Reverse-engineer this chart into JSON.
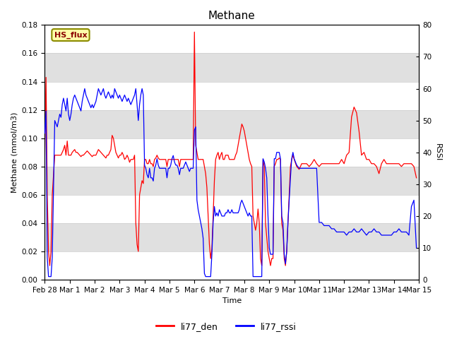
{
  "title": "Methane",
  "ylabel_left": "Methane (mmol/m3)",
  "ylabel_right": "RSSI",
  "xlabel": "Time",
  "ylim_left": [
    0,
    0.18
  ],
  "ylim_right": [
    0,
    80
  ],
  "legend_labels": [
    "li77_den",
    "li77_rssi"
  ],
  "hs_flux_label": "HS_flux",
  "background_color": "#ffffff",
  "band_colors": [
    "#ffffff",
    "#e0e0e0"
  ],
  "band_edges_left": [
    0.0,
    0.02,
    0.04,
    0.06,
    0.08,
    0.1,
    0.12,
    0.14,
    0.16,
    0.18
  ],
  "title_fontsize": 11,
  "axis_label_fontsize": 8,
  "tick_label_fontsize": 7.5,
  "line_width": 0.9,
  "xtick_labels": [
    "Feb 28",
    "Mar 1",
    "Mar 2",
    "Mar 3",
    "Mar 4",
    "Mar 5",
    "Mar 6",
    "Mar 7",
    "Mar 8",
    "Mar 9",
    "Mar 10",
    "Mar 11",
    "Mar 12",
    "Mar 13",
    "Mar 14",
    "Mar 15"
  ],
  "xtick_positions": [
    0,
    1,
    2,
    3,
    4,
    5,
    6,
    7,
    8,
    9,
    10,
    11,
    12,
    13,
    14,
    15
  ],
  "red_data_x": [
    0.0,
    0.05,
    0.1,
    0.15,
    0.2,
    0.25,
    0.3,
    0.4,
    0.5,
    0.55,
    0.6,
    0.65,
    0.7,
    0.75,
    0.8,
    0.85,
    0.9,
    0.95,
    1.0,
    1.05,
    1.1,
    1.15,
    1.2,
    1.25,
    1.3,
    1.35,
    1.4,
    1.45,
    1.5,
    1.55,
    1.6,
    1.65,
    1.7,
    1.75,
    1.8,
    1.85,
    1.9,
    1.95,
    2.0,
    2.05,
    2.1,
    2.15,
    2.2,
    2.25,
    2.3,
    2.35,
    2.4,
    2.45,
    2.5,
    2.55,
    2.6,
    2.65,
    2.7,
    2.75,
    2.8,
    2.85,
    2.9,
    2.95,
    3.0,
    3.05,
    3.1,
    3.15,
    3.2,
    3.25,
    3.3,
    3.35,
    3.4,
    3.45,
    3.5,
    3.55,
    3.6,
    3.65,
    3.7,
    3.75,
    3.8,
    3.85,
    3.9,
    3.95,
    4.0,
    4.05,
    4.1,
    4.15,
    4.2,
    4.25,
    4.3,
    4.35,
    4.4,
    4.45,
    4.5,
    4.55,
    4.6,
    4.65,
    4.7,
    4.75,
    4.8,
    4.85,
    4.9,
    4.95,
    5.0,
    5.05,
    5.1,
    5.15,
    5.2,
    5.25,
    5.3,
    5.35,
    5.4,
    5.45,
    5.5,
    5.55,
    5.6,
    5.65,
    5.7,
    5.75,
    5.8,
    5.85,
    5.9,
    5.95,
    6.0,
    6.05,
    6.1,
    6.15,
    6.2,
    6.25,
    6.3,
    6.35,
    6.4,
    6.45,
    6.5,
    6.55,
    6.6,
    6.65,
    6.7,
    6.75,
    6.8,
    6.85,
    6.9,
    6.95,
    7.0,
    7.05,
    7.1,
    7.15,
    7.2,
    7.25,
    7.3,
    7.35,
    7.4,
    7.45,
    7.5,
    7.55,
    7.6,
    7.65,
    7.7,
    7.75,
    7.8,
    7.85,
    7.9,
    7.95,
    8.0,
    8.05,
    8.1,
    8.15,
    8.2,
    8.25,
    8.3,
    8.35,
    8.4,
    8.45,
    8.5,
    8.55,
    8.6,
    8.65,
    8.7,
    8.75,
    8.8,
    8.85,
    8.9,
    8.95,
    9.0,
    9.05,
    9.1,
    9.15,
    9.2,
    9.25,
    9.3,
    9.35,
    9.4,
    9.45,
    9.5,
    9.55,
    9.6,
    9.65,
    9.7,
    9.75,
    9.8,
    9.85,
    9.9,
    9.95,
    10.0,
    10.1,
    10.2,
    10.3,
    10.4,
    10.5,
    10.6,
    10.7,
    10.8,
    10.9,
    11.0,
    11.1,
    11.2,
    11.3,
    11.4,
    11.5,
    11.6,
    11.7,
    11.8,
    11.9,
    12.0,
    12.1,
    12.2,
    12.3,
    12.4,
    12.5,
    12.6,
    12.7,
    12.8,
    12.9,
    13.0,
    13.1,
    13.2,
    13.3,
    13.4,
    13.5,
    13.6,
    13.7,
    13.8,
    13.9,
    14.0,
    14.1,
    14.2,
    14.3,
    14.4,
    14.5,
    14.6,
    14.7,
    14.8,
    14.9
  ],
  "red_data_y": [
    0.088,
    0.143,
    0.06,
    0.02,
    0.01,
    0.02,
    0.06,
    0.088,
    0.088,
    0.088,
    0.088,
    0.088,
    0.09,
    0.092,
    0.095,
    0.088,
    0.098,
    0.088,
    0.088,
    0.088,
    0.09,
    0.091,
    0.092,
    0.09,
    0.09,
    0.089,
    0.088,
    0.087,
    0.088,
    0.088,
    0.089,
    0.09,
    0.091,
    0.09,
    0.089,
    0.088,
    0.087,
    0.088,
    0.088,
    0.088,
    0.09,
    0.092,
    0.091,
    0.09,
    0.089,
    0.088,
    0.087,
    0.086,
    0.088,
    0.088,
    0.09,
    0.092,
    0.102,
    0.1,
    0.095,
    0.09,
    0.088,
    0.086,
    0.088,
    0.088,
    0.09,
    0.088,
    0.085,
    0.086,
    0.088,
    0.086,
    0.083,
    0.085,
    0.085,
    0.085,
    0.088,
    0.04,
    0.025,
    0.02,
    0.06,
    0.065,
    0.07,
    0.068,
    0.085,
    0.085,
    0.082,
    0.082,
    0.085,
    0.082,
    0.082,
    0.08,
    0.085,
    0.086,
    0.088,
    0.086,
    0.085,
    0.085,
    0.085,
    0.085,
    0.085,
    0.085,
    0.08,
    0.085,
    0.085,
    0.085,
    0.085,
    0.085,
    0.085,
    0.085,
    0.085,
    0.085,
    0.08,
    0.085,
    0.085,
    0.085,
    0.085,
    0.085,
    0.085,
    0.085,
    0.085,
    0.085,
    0.085,
    0.085,
    0.175,
    0.095,
    0.09,
    0.085,
    0.085,
    0.085,
    0.085,
    0.085,
    0.08,
    0.075,
    0.065,
    0.045,
    0.025,
    0.015,
    0.022,
    0.045,
    0.07,
    0.085,
    0.088,
    0.09,
    0.085,
    0.088,
    0.09,
    0.085,
    0.085,
    0.088,
    0.088,
    0.088,
    0.085,
    0.085,
    0.085,
    0.085,
    0.085,
    0.088,
    0.09,
    0.095,
    0.1,
    0.105,
    0.11,
    0.108,
    0.105,
    0.1,
    0.095,
    0.09,
    0.085,
    0.082,
    0.08,
    0.045,
    0.04,
    0.035,
    0.04,
    0.05,
    0.04,
    0.015,
    0.01,
    0.085,
    0.08,
    0.04,
    0.03,
    0.02,
    0.015,
    0.01,
    0.015,
    0.015,
    0.08,
    0.082,
    0.085,
    0.085,
    0.086,
    0.085,
    0.04,
    0.035,
    0.015,
    0.01,
    0.02,
    0.04,
    0.06,
    0.08,
    0.085,
    0.088,
    0.085,
    0.08,
    0.078,
    0.082,
    0.082,
    0.082,
    0.08,
    0.082,
    0.085,
    0.082,
    0.08,
    0.082,
    0.082,
    0.082,
    0.082,
    0.082,
    0.082,
    0.082,
    0.082,
    0.085,
    0.082,
    0.088,
    0.09,
    0.115,
    0.122,
    0.118,
    0.105,
    0.088,
    0.09,
    0.085,
    0.085,
    0.082,
    0.082,
    0.08,
    0.075,
    0.082,
    0.085,
    0.082,
    0.082,
    0.082,
    0.082,
    0.082,
    0.082,
    0.08,
    0.082,
    0.082,
    0.082,
    0.082,
    0.08,
    0.072
  ],
  "blue_data_x": [
    0.0,
    0.05,
    0.1,
    0.15,
    0.2,
    0.25,
    0.3,
    0.4,
    0.5,
    0.55,
    0.6,
    0.65,
    0.7,
    0.75,
    0.8,
    0.85,
    0.9,
    0.95,
    1.0,
    1.05,
    1.1,
    1.15,
    1.2,
    1.25,
    1.3,
    1.35,
    1.4,
    1.45,
    1.5,
    1.55,
    1.6,
    1.65,
    1.7,
    1.75,
    1.8,
    1.85,
    1.9,
    1.95,
    2.0,
    2.05,
    2.1,
    2.15,
    2.2,
    2.25,
    2.3,
    2.35,
    2.4,
    2.45,
    2.5,
    2.55,
    2.6,
    2.65,
    2.7,
    2.75,
    2.8,
    2.85,
    2.9,
    2.95,
    3.0,
    3.05,
    3.1,
    3.15,
    3.2,
    3.25,
    3.3,
    3.35,
    3.4,
    3.45,
    3.5,
    3.55,
    3.6,
    3.65,
    3.7,
    3.75,
    3.8,
    3.85,
    3.9,
    3.95,
    4.0,
    4.05,
    4.1,
    4.15,
    4.2,
    4.25,
    4.3,
    4.35,
    4.4,
    4.45,
    4.5,
    4.55,
    4.6,
    4.65,
    4.7,
    4.75,
    4.8,
    4.85,
    4.9,
    4.95,
    5.0,
    5.05,
    5.1,
    5.15,
    5.2,
    5.25,
    5.3,
    5.35,
    5.4,
    5.45,
    5.5,
    5.55,
    5.6,
    5.65,
    5.7,
    5.75,
    5.8,
    5.85,
    5.9,
    5.95,
    6.0,
    6.05,
    6.1,
    6.15,
    6.2,
    6.25,
    6.3,
    6.35,
    6.4,
    6.45,
    6.5,
    6.55,
    6.6,
    6.65,
    6.7,
    6.75,
    6.8,
    6.85,
    6.9,
    6.95,
    7.0,
    7.05,
    7.1,
    7.15,
    7.2,
    7.25,
    7.3,
    7.35,
    7.4,
    7.45,
    7.5,
    7.55,
    7.6,
    7.65,
    7.7,
    7.75,
    7.8,
    7.85,
    7.9,
    7.95,
    8.0,
    8.05,
    8.1,
    8.15,
    8.2,
    8.25,
    8.3,
    8.35,
    8.4,
    8.45,
    8.5,
    8.55,
    8.6,
    8.65,
    8.7,
    8.75,
    8.8,
    8.85,
    8.9,
    8.95,
    9.0,
    9.05,
    9.1,
    9.15,
    9.2,
    9.25,
    9.3,
    9.35,
    9.4,
    9.45,
    9.5,
    9.55,
    9.6,
    9.65,
    9.7,
    9.75,
    9.8,
    9.85,
    9.9,
    9.95,
    10.0,
    10.1,
    10.2,
    10.3,
    10.4,
    10.5,
    10.6,
    10.7,
    10.8,
    10.9,
    11.0,
    11.1,
    11.2,
    11.3,
    11.4,
    11.5,
    11.6,
    11.7,
    11.8,
    11.9,
    12.0,
    12.1,
    12.2,
    12.3,
    12.4,
    12.5,
    12.6,
    12.7,
    12.8,
    12.9,
    13.0,
    13.1,
    13.2,
    13.3,
    13.4,
    13.5,
    13.6,
    13.7,
    13.8,
    13.9,
    14.0,
    14.1,
    14.2,
    14.3,
    14.4,
    14.5,
    14.6,
    14.7,
    14.8,
    14.9
  ],
  "blue_data_y": [
    46,
    53,
    7,
    1,
    1,
    1,
    7,
    50,
    48,
    50,
    52,
    51,
    55,
    57,
    55,
    53,
    57,
    52,
    50,
    52,
    55,
    57,
    58,
    57,
    56,
    55,
    54,
    53,
    56,
    58,
    60,
    58,
    57,
    56,
    55,
    54,
    55,
    54,
    55,
    56,
    58,
    60,
    59,
    58,
    59,
    60,
    58,
    57,
    58,
    59,
    58,
    57,
    58,
    57,
    60,
    59,
    58,
    57,
    58,
    57,
    56,
    57,
    58,
    57,
    56,
    57,
    56,
    55,
    56,
    57,
    58,
    60,
    55,
    50,
    55,
    58,
    60,
    58,
    36,
    35,
    33,
    32,
    35,
    32,
    32,
    31,
    35,
    36,
    38,
    36,
    35,
    35,
    35,
    35,
    35,
    35,
    32,
    35,
    35,
    36,
    38,
    39,
    37,
    36,
    36,
    35,
    33,
    35,
    35,
    35,
    36,
    37,
    36,
    35,
    34,
    35,
    35,
    35,
    47,
    48,
    25,
    22,
    20,
    18,
    16,
    13,
    2,
    1,
    1,
    1,
    1,
    1,
    8,
    18,
    23,
    20,
    21,
    20,
    22,
    21,
    20,
    20,
    20,
    21,
    21,
    22,
    21,
    21,
    22,
    21,
    21,
    21,
    21,
    21,
    22,
    24,
    25,
    24,
    23,
    22,
    21,
    20,
    21,
    20,
    20,
    1,
    1,
    1,
    1,
    1,
    1,
    1,
    1,
    38,
    37,
    35,
    32,
    20,
    10,
    8,
    8,
    8,
    38,
    38,
    40,
    40,
    40,
    38,
    20,
    18,
    8,
    5,
    9,
    18,
    25,
    32,
    38,
    40,
    38,
    36,
    35,
    35,
    35,
    35,
    35,
    35,
    35,
    35,
    18,
    18,
    17,
    17,
    17,
    16,
    16,
    15,
    15,
    15,
    15,
    14,
    15,
    15,
    16,
    15,
    15,
    16,
    15,
    14,
    15,
    15,
    16,
    15,
    15,
    14,
    14,
    14,
    14,
    14,
    15,
    15,
    16,
    15,
    15,
    15,
    14,
    23,
    25,
    10
  ]
}
